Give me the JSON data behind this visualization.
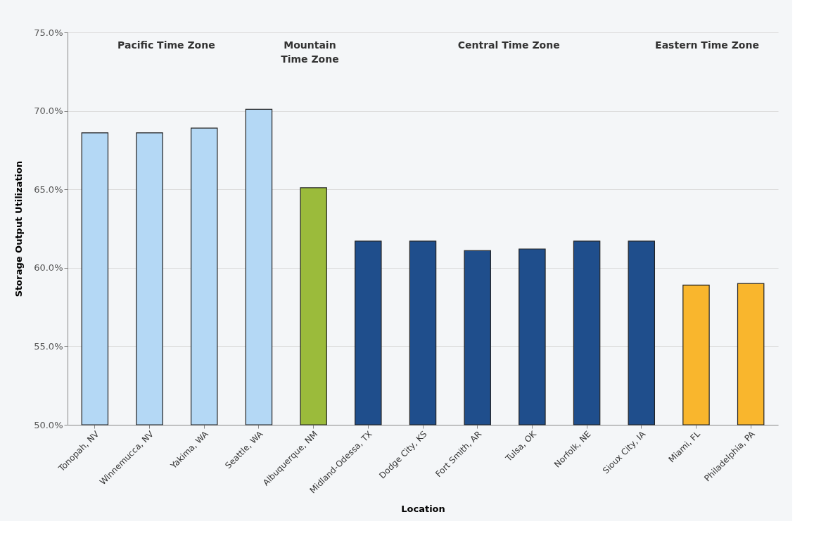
{
  "chart_data": {
    "type": "bar",
    "xlabel": "Location",
    "ylabel": "Storage Output Utilization",
    "categories": [
      "Tonopah, NV",
      "Winnemucca, NV",
      "Yakima, WA",
      "Seattle, WA",
      "Albuquerque, NM",
      "Midland-Odessa, TX",
      "Dodge City, KS",
      "Fort Smith, AR",
      "Tulsa, OK",
      "Norfolk, NE",
      "Sioux City, IA",
      "Miami, FL",
      "Philadelphia, PA"
    ],
    "values": [
      68.6,
      68.6,
      68.9,
      70.1,
      65.1,
      61.7,
      61.7,
      61.1,
      61.2,
      61.7,
      61.7,
      58.9,
      59.0
    ],
    "colors": [
      "#b4d8f5",
      "#b4d8f5",
      "#b4d8f5",
      "#b4d8f5",
      "#9bbb3b",
      "#1f4e8c",
      "#1f4e8c",
      "#1f4e8c",
      "#1f4e8c",
      "#1f4e8c",
      "#1f4e8c",
      "#f9b62d",
      "#f9b62d"
    ],
    "ylim": [
      50,
      75
    ],
    "yticks": [
      {
        "value": 50,
        "label": "50.0%"
      },
      {
        "value": 55,
        "label": "55.0%"
      },
      {
        "value": 60,
        "label": "60.0%"
      },
      {
        "value": 65,
        "label": "65.0%"
      },
      {
        "value": 70,
        "label": "70.0%"
      },
      {
        "value": 75,
        "label": "75.0%"
      }
    ],
    "grid": "y",
    "legend": false,
    "annotations": [
      "Pacific Time Zone",
      "Mountain\nTime Zone",
      "Central Time Zone",
      "Eastern Time Zone"
    ]
  }
}
